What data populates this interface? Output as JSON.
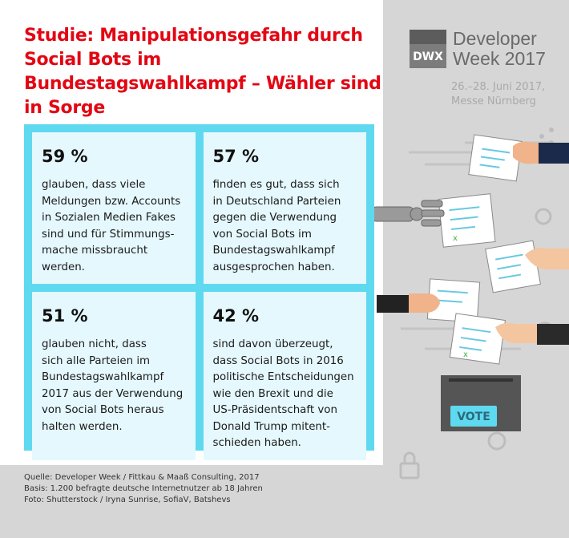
{
  "title": "Studie: Manipulationsgefahr durch Social Bots im Bundestagswahlkampf – Wähler sind in Sorge",
  "logo": {
    "mark": "DWX",
    "name_line1": "Developer",
    "name_line2": "Week 2017"
  },
  "event": {
    "date": "26.–28. Juni 2017,",
    "location": "Messe Nürnberg"
  },
  "stats": [
    {
      "percent": "59 %",
      "text": "glauben, dass viele\nMeldungen bzw. Accounts\nin Sozialen Medien Fakes\nsind und für Stimmungs-\nmache missbraucht\nwerden."
    },
    {
      "percent": "57 %",
      "text": "finden es gut, dass sich\nin Deutschland Parteien\ngegen die Verwendung\nvon Social Bots im\nBundestagswahlkampf\nausgesprochen haben."
    },
    {
      "percent": "51 %",
      "text": "glauben nicht, dass\nsich alle Parteien im\nBundestagswahlkampf\n2017 aus der Verwendung\nvon Social Bots heraus\nhalten werden."
    },
    {
      "percent": "42 %",
      "text": "sind davon überzeugt,\ndass Social Bots in 2016\npolitische Entscheidungen\nwie den Brexit und die\nUS-Präsidentschaft von\nDonald Trump mitent-\nschieden haben."
    }
  ],
  "footer": {
    "source": "Quelle: Developer Week / Fittkau & Maaß Consulting, 2017",
    "basis": "Basis: 1.200 befragte deutsche Internetnutzer ab 18 Jahren",
    "photo": "Foto: Shutterstock / Iryna Sunrise, SofiaV, Batshevs"
  },
  "illustration": {
    "ballot_box_label": "VOTE",
    "colors": {
      "accent_red": "#e30613",
      "stat_border": "#5fd9f0",
      "stat_fill": "#e5f8fd",
      "ballot_box": "#555555",
      "vote_label": "#5fd9f0"
    }
  }
}
